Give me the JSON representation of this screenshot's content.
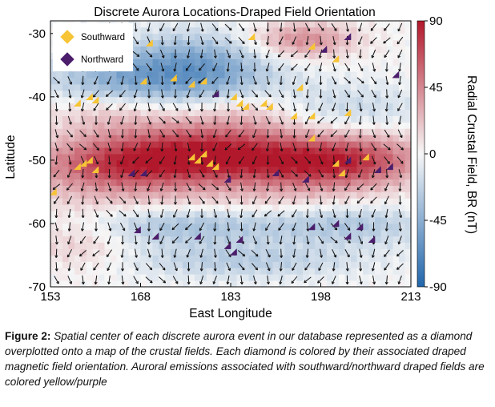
{
  "chart_data": {
    "type": "heatmap",
    "title": "Discrete Aurora Locations-Draped Field Orientation",
    "xlabel": "East Longitude",
    "ylabel": "Latitude",
    "xlim": [
      153,
      213
    ],
    "ylim": [
      -70,
      -28
    ],
    "xticks": [
      "153",
      "168",
      "183",
      "198",
      "213"
    ],
    "yticks": [
      "-30",
      "-40",
      "-50",
      "-60",
      "-70"
    ],
    "colorbar": {
      "label": "Radial Crustal Field, BR (nT)",
      "range": [
        -90,
        90
      ],
      "ticks": [
        "90",
        "45",
        "0",
        "-45",
        "-90"
      ],
      "colors": {
        "positive": "#b2182b",
        "neutral": "#f7f7f7",
        "negative": "#2166ac"
      }
    },
    "legend": {
      "placement": "top-left",
      "entries": [
        {
          "label": "Southward",
          "color": "#f7c435",
          "marker": "diamond"
        },
        {
          "label": "Northward",
          "color": "#4b1d6b",
          "marker": "diamond"
        }
      ]
    },
    "field_bands": [
      {
        "lat": -49,
        "lon": 180,
        "amp": 85,
        "sigma_lat": 3.5,
        "sigma_lon": 12
      },
      {
        "lat": -51,
        "lon": 163,
        "amp": 55,
        "sigma_lat": 3.2,
        "sigma_lon": 10
      },
      {
        "lat": -50,
        "lon": 205,
        "amp": 55,
        "sigma_lat": 3.0,
        "sigma_lon": 8
      },
      {
        "lat": -51,
        "lon": 195,
        "amp": 35,
        "sigma_lat": 3.0,
        "sigma_lon": 8
      },
      {
        "lat": -36,
        "lon": 177,
        "amp": -60,
        "sigma_lat": 4.0,
        "sigma_lon": 9
      },
      {
        "lat": -38,
        "lon": 162,
        "amp": -35,
        "sigma_lat": 3.5,
        "sigma_lon": 8
      },
      {
        "lat": -42,
        "lon": 198,
        "amp": -25,
        "sigma_lat": 3.0,
        "sigma_lon": 12
      },
      {
        "lat": -42,
        "lon": 163,
        "amp": 30,
        "sigma_lat": 2.5,
        "sigma_lon": 8
      },
      {
        "lat": -42,
        "lon": 186,
        "amp": 30,
        "sigma_lat": 2.5,
        "sigma_lon": 8
      },
      {
        "lat": -31,
        "lon": 195,
        "amp": 45,
        "sigma_lat": 2.0,
        "sigma_lon": 6
      },
      {
        "lat": -60,
        "lon": 175,
        "amp": -35,
        "sigma_lat": 2.5,
        "sigma_lon": 12
      },
      {
        "lat": -60,
        "lon": 203,
        "amp": -30,
        "sigma_lat": 2.5,
        "sigma_lon": 10
      },
      {
        "lat": -66,
        "lon": 185,
        "amp": -25,
        "sigma_lat": 2.0,
        "sigma_lon": 14
      },
      {
        "lat": -63,
        "lon": 158,
        "amp": 20,
        "sigma_lat": 3.0,
        "sigma_lon": 6
      },
      {
        "lat": -57,
        "lon": 180,
        "amp": 15,
        "sigma_lat": 1.8,
        "sigma_lon": 20
      }
    ],
    "series": [
      {
        "name": "Southward",
        "points": [
          [
            165,
            -29.5
          ],
          [
            170,
            -32
          ],
          [
            187,
            -31
          ],
          [
            197,
            -32.5
          ],
          [
            201,
            -34.5
          ],
          [
            169,
            -38
          ],
          [
            174,
            -37.5
          ],
          [
            177,
            -38.5
          ],
          [
            179,
            -38
          ],
          [
            195,
            -39
          ],
          [
            158,
            -41.5
          ],
          [
            160,
            -40.5
          ],
          [
            161,
            -41
          ],
          [
            184,
            -40.5
          ],
          [
            185,
            -41.5
          ],
          [
            186,
            -42
          ],
          [
            189,
            -41.5
          ],
          [
            190,
            -42
          ],
          [
            194,
            -43.5
          ],
          [
            197,
            -43.5
          ],
          [
            203,
            -43
          ],
          [
            197,
            -47
          ],
          [
            158,
            -51.5
          ],
          [
            159,
            -51
          ],
          [
            160,
            -50.5
          ],
          [
            161,
            -52
          ],
          [
            177,
            -50
          ],
          [
            178,
            -50.5
          ],
          [
            179,
            -49.5
          ],
          [
            180,
            -51
          ],
          [
            181,
            -51.5
          ],
          [
            201,
            -51
          ],
          [
            202,
            -52.5
          ],
          [
            206,
            -50
          ],
          [
            154,
            -55.5
          ]
        ]
      },
      {
        "name": "Northward",
        "points": [
          [
            199,
            -33
          ],
          [
            203,
            -31
          ],
          [
            211,
            -37
          ],
          [
            181,
            -40
          ],
          [
            167,
            -52.5
          ],
          [
            169,
            -52.5
          ],
          [
            183,
            -53.5
          ],
          [
            191,
            -52.5
          ],
          [
            196,
            -53.5
          ],
          [
            203,
            -50.5
          ],
          [
            208,
            -52
          ],
          [
            210,
            -51.5
          ],
          [
            205,
            -61
          ],
          [
            197,
            -61
          ],
          [
            201,
            -60.5
          ],
          [
            203,
            -62.5
          ],
          [
            207,
            -63
          ],
          [
            168,
            -61.5
          ],
          [
            171,
            -62.5
          ],
          [
            178,
            -62.5
          ],
          [
            185,
            -63
          ],
          [
            183,
            -64
          ],
          [
            184,
            -65
          ]
        ]
      }
    ]
  },
  "caption": {
    "label": "Figure 2:",
    "text": "Spatial center of each discrete aurora event in our database represented as a diamond overplotted onto a map of the crustal fields. Each diamond is colored by their associated draped magnetic field orientation. Auroral emissions associated with southward/northward draped fields are colored yellow/purple"
  }
}
